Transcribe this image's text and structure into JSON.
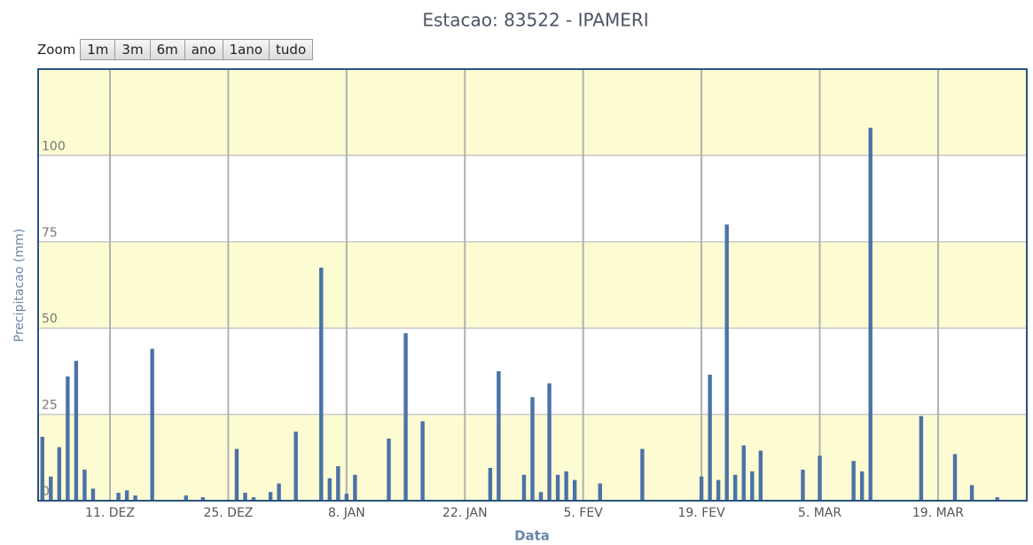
{
  "chart_data": {
    "type": "bar",
    "title": "Estacao: 83522 - IPAMERI",
    "xlabel": "Data",
    "ylabel": "Precipitacao (mm)",
    "categories": [
      null,
      null,
      null,
      null,
      null,
      null,
      null,
      null,
      "11. DEZ",
      null,
      null,
      null,
      null,
      null,
      null,
      null,
      null,
      null,
      null,
      null,
      null,
      null,
      "25. DEZ",
      null,
      null,
      null,
      null,
      null,
      null,
      null,
      null,
      null,
      null,
      null,
      null,
      null,
      "8. JAN",
      null,
      null,
      null,
      null,
      null,
      null,
      null,
      null,
      null,
      null,
      null,
      null,
      null,
      "22. JAN",
      null,
      null,
      null,
      null,
      null,
      null,
      null,
      null,
      null,
      null,
      null,
      null,
      null,
      "5. FEV",
      null,
      null,
      null,
      null,
      null,
      null,
      null,
      null,
      null,
      null,
      null,
      null,
      null,
      "19. FEV",
      null,
      null,
      null,
      null,
      null,
      null,
      null,
      null,
      null,
      null,
      null,
      null,
      null,
      "5. MAR",
      null,
      null,
      null,
      null,
      null,
      null,
      null,
      null,
      null,
      null,
      null,
      null,
      null,
      "19. MAR",
      null,
      null,
      null,
      null,
      null,
      null,
      null,
      null,
      null,
      null
    ],
    "values": [
      18.5,
      7,
      15.5,
      36,
      40.5,
      9,
      3.5,
      0,
      0,
      2.3,
      3,
      1.5,
      0,
      44,
      0,
      0,
      0,
      1.5,
      0,
      1,
      0,
      0,
      0,
      15,
      2.3,
      1,
      0,
      2.5,
      5,
      0,
      20,
      0,
      0,
      67.5,
      6.5,
      10,
      2,
      7.5,
      0,
      0,
      0,
      18,
      0,
      48.5,
      0,
      23,
      0,
      0,
      0,
      0,
      0,
      0,
      0,
      9.5,
      37.5,
      0,
      0,
      7.5,
      30,
      2.5,
      34,
      7.5,
      8.5,
      6,
      0,
      0,
      5,
      0,
      0,
      0,
      0,
      15,
      0,
      0,
      0,
      0,
      0,
      0,
      7,
      36.5,
      6,
      80,
      7.5,
      16,
      8.5,
      14.5,
      0,
      0,
      0,
      0,
      9,
      0,
      13,
      0,
      0,
      0,
      11.5,
      8.5,
      108,
      0,
      0,
      0,
      0,
      0,
      24.5,
      0,
      0,
      0,
      13.5,
      0,
      4.5,
      0,
      0,
      1,
      0,
      0,
      0
    ],
    "color": "#4a72a8",
    "ylim": [
      0,
      125
    ],
    "yticks": [
      0,
      25,
      50,
      75,
      100
    ],
    "grid": true
  },
  "controls": {
    "label": "Zoom",
    "buttons": [
      "1m",
      "3m",
      "6m",
      "ano",
      "1ano",
      "tudo"
    ]
  }
}
